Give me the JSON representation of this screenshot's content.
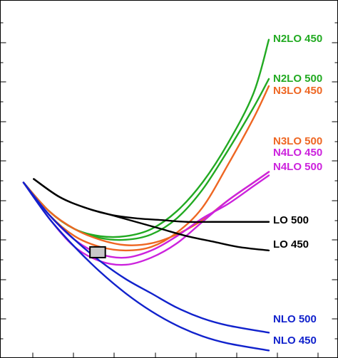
{
  "chart_data": {
    "type": "line",
    "title": "",
    "xlabel": "",
    "ylabel": "",
    "xlim": [
      0,
      1
    ],
    "ylim": [
      0,
      1
    ],
    "grid": false,
    "legend": "curve labels placed at right end of each line",
    "series": [
      {
        "name": "N2LO 450",
        "color": "#22aa22",
        "points": [
          [
            0.0,
            0.49
          ],
          [
            0.05,
            0.41
          ],
          [
            0.1,
            0.36
          ],
          [
            0.15,
            0.34
          ],
          [
            0.2,
            0.34
          ],
          [
            0.25,
            0.36
          ],
          [
            0.3,
            0.41
          ],
          [
            0.35,
            0.49
          ],
          [
            0.4,
            0.6
          ],
          [
            0.45,
            0.74
          ],
          [
            0.48,
            0.89
          ]
        ]
      },
      {
        "name": "N2LO 500",
        "color": "#22aa22",
        "points": [
          [
            0.0,
            0.49
          ],
          [
            0.05,
            0.41
          ],
          [
            0.1,
            0.36
          ],
          [
            0.15,
            0.335
          ],
          [
            0.2,
            0.33
          ],
          [
            0.25,
            0.345
          ],
          [
            0.3,
            0.39
          ],
          [
            0.35,
            0.47
          ],
          [
            0.4,
            0.58
          ],
          [
            0.45,
            0.7
          ],
          [
            0.48,
            0.78
          ]
        ]
      },
      {
        "name": "N3LO 450",
        "color": "#ee6622",
        "points": [
          [
            0.0,
            0.49
          ],
          [
            0.05,
            0.4
          ],
          [
            0.1,
            0.34
          ],
          [
            0.15,
            0.31
          ],
          [
            0.2,
            0.3
          ],
          [
            0.25,
            0.31
          ],
          [
            0.3,
            0.35
          ],
          [
            0.35,
            0.42
          ],
          [
            0.4,
            0.54
          ],
          [
            0.45,
            0.67
          ],
          [
            0.48,
            0.76
          ]
        ]
      },
      {
        "name": "N3LO 500",
        "color": "#ee6622",
        "points": [
          [
            0.0,
            0.49
          ],
          [
            0.05,
            0.41
          ],
          [
            0.1,
            0.36
          ],
          [
            0.15,
            0.33
          ],
          [
            0.2,
            0.315
          ],
          [
            0.25,
            0.32
          ],
          [
            0.3,
            0.345
          ],
          [
            0.35,
            0.385
          ],
          [
            0.4,
            0.44
          ],
          [
            0.45,
            0.49
          ],
          [
            0.48,
            0.52
          ]
        ]
      },
      {
        "name": "N4LO 450",
        "color": "#cc22dd",
        "points": [
          [
            0.0,
            0.49
          ],
          [
            0.05,
            0.4
          ],
          [
            0.1,
            0.33
          ],
          [
            0.15,
            0.29
          ],
          [
            0.2,
            0.28
          ],
          [
            0.25,
            0.3
          ],
          [
            0.3,
            0.34
          ],
          [
            0.35,
            0.39
          ],
          [
            0.4,
            0.43
          ],
          [
            0.45,
            0.48
          ],
          [
            0.48,
            0.51
          ]
        ]
      },
      {
        "name": "N4LO 500",
        "color": "#cc22dd",
        "points": [
          [
            0.0,
            0.49
          ],
          [
            0.05,
            0.39
          ],
          [
            0.1,
            0.31
          ],
          [
            0.15,
            0.27
          ],
          [
            0.2,
            0.26
          ],
          [
            0.25,
            0.28
          ],
          [
            0.3,
            0.32
          ],
          [
            0.35,
            0.38
          ],
          [
            0.4,
            0.44
          ],
          [
            0.45,
            0.49
          ],
          [
            0.48,
            0.52
          ]
        ]
      },
      {
        "name": "LO 500",
        "color": "#000000",
        "points": [
          [
            0.02,
            0.5
          ],
          [
            0.07,
            0.45
          ],
          [
            0.12,
            0.42
          ],
          [
            0.17,
            0.4
          ],
          [
            0.22,
            0.39
          ],
          [
            0.27,
            0.385
          ],
          [
            0.32,
            0.38
          ],
          [
            0.37,
            0.38
          ],
          [
            0.42,
            0.38
          ],
          [
            0.48,
            0.38
          ]
        ]
      },
      {
        "name": "LO 450",
        "color": "#000000",
        "points": [
          [
            0.02,
            0.5
          ],
          [
            0.07,
            0.45
          ],
          [
            0.12,
            0.42
          ],
          [
            0.17,
            0.4
          ],
          [
            0.22,
            0.38
          ],
          [
            0.27,
            0.36
          ],
          [
            0.32,
            0.34
          ],
          [
            0.37,
            0.325
          ],
          [
            0.42,
            0.31
          ],
          [
            0.48,
            0.3
          ]
        ]
      },
      {
        "name": "NLO 500",
        "color": "#1122cc",
        "points": [
          [
            0.0,
            0.49
          ],
          [
            0.05,
            0.4
          ],
          [
            0.1,
            0.33
          ],
          [
            0.15,
            0.27
          ],
          [
            0.2,
            0.22
          ],
          [
            0.25,
            0.18
          ],
          [
            0.3,
            0.14
          ],
          [
            0.35,
            0.11
          ],
          [
            0.4,
            0.09
          ],
          [
            0.48,
            0.07
          ]
        ]
      },
      {
        "name": "NLO 450",
        "color": "#1122cc",
        "points": [
          [
            0.0,
            0.49
          ],
          [
            0.05,
            0.39
          ],
          [
            0.1,
            0.31
          ],
          [
            0.15,
            0.24
          ],
          [
            0.2,
            0.18
          ],
          [
            0.25,
            0.13
          ],
          [
            0.3,
            0.09
          ],
          [
            0.35,
            0.06
          ],
          [
            0.4,
            0.04
          ],
          [
            0.48,
            0.02
          ]
        ]
      }
    ],
    "box": {
      "x": [
        0.13,
        0.16
      ],
      "y": [
        0.28,
        0.31
      ],
      "fill": "#c8c8c8",
      "stroke": "#000000"
    }
  }
}
